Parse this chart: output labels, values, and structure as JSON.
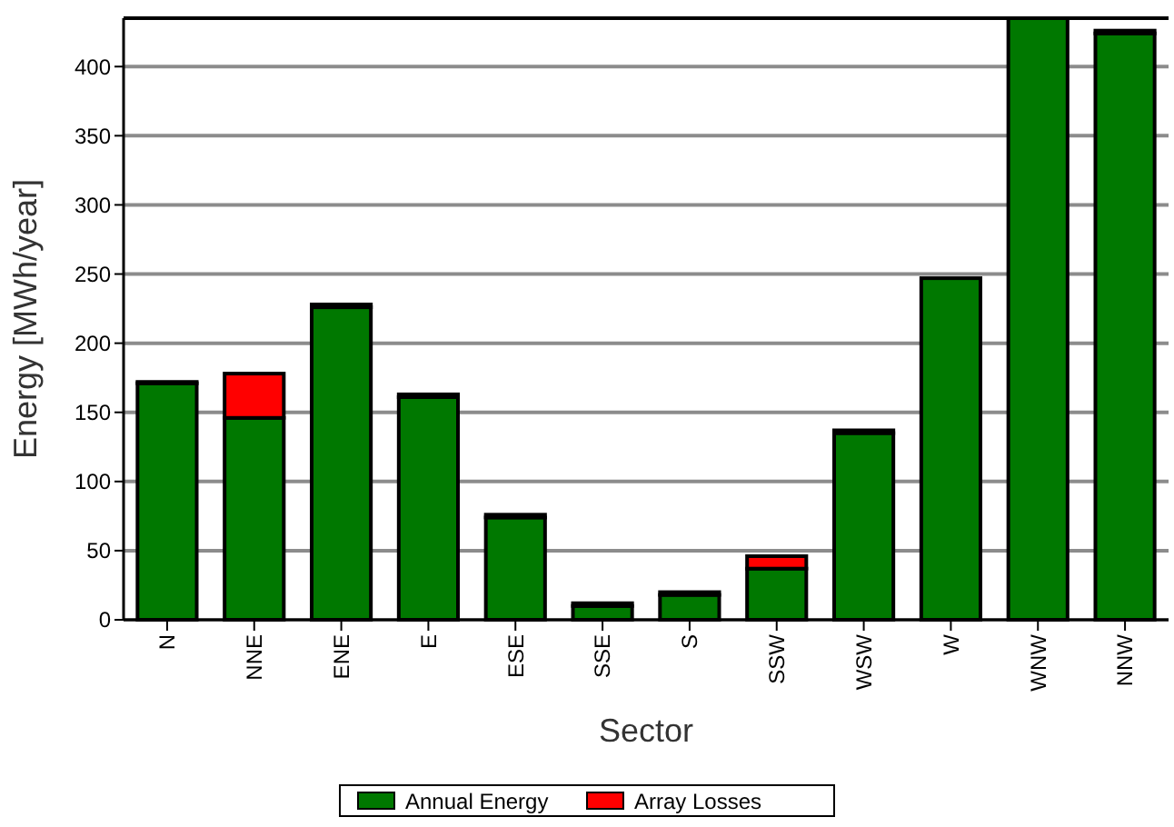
{
  "chart_data": {
    "type": "bar",
    "stacked": true,
    "xlabel": "Sector",
    "ylabel": "Energy [MWh/year]",
    "categories": [
      "N",
      "NNE",
      "ENE",
      "E",
      "ESE",
      "SSE",
      "S",
      "SSW",
      "WSW",
      "W",
      "WNW",
      "NNW"
    ],
    "series": [
      {
        "name": "Annual Energy",
        "color": "#007800",
        "values": [
          171,
          146,
          226,
          161,
          74,
          10,
          18,
          37,
          135,
          247,
          435,
          424
        ]
      },
      {
        "name": "Array Losses",
        "color": "#ff0000",
        "values": [
          1,
          32,
          2,
          2,
          2,
          2,
          2,
          9,
          2,
          0,
          0,
          2
        ]
      }
    ],
    "ylim": [
      0,
      435
    ],
    "yticks": [
      0,
      50,
      100,
      150,
      200,
      250,
      300,
      350,
      400
    ],
    "grid": "y",
    "legend": "bottom"
  }
}
